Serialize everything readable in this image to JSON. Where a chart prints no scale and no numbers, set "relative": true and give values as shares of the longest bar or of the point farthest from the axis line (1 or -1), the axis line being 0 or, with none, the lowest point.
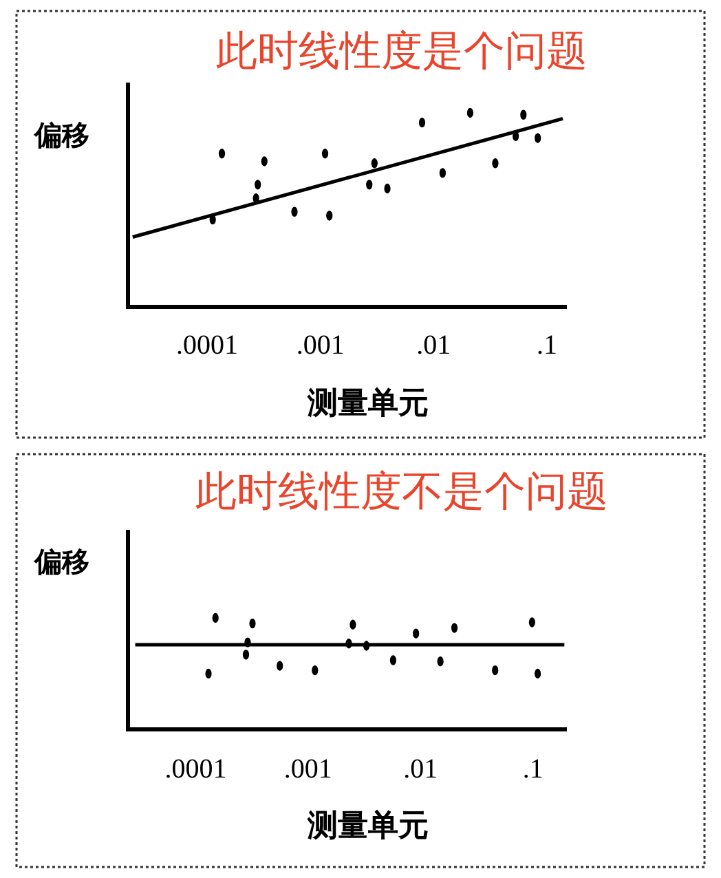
{
  "chart_data": [
    {
      "type": "scatter",
      "title": "此时线性度是个问题",
      "ylabel": "偏移",
      "xlabel": "测量单元",
      "relative": true,
      "log": "x",
      "xlim": [
        2e-05,
        0.15
      ],
      "xticks": [
        {
          "value": 0.0001,
          "label": ".0001"
        },
        {
          "value": 0.001,
          "label": ".001"
        },
        {
          "value": 0.01,
          "label": ".01"
        },
        {
          "value": 0.1,
          "label": ".1"
        }
      ],
      "series": [
        {
          "type": "scatter",
          "marker": "circle",
          "color": "#000000",
          "x": [
            0.000135,
            0.000112,
            0.00028,
            0.00027,
            0.00032,
            0.00059,
            0.0011,
            0.0012,
            0.0027,
            0.003,
            0.0039,
            0.0079,
            0.012,
            0.021,
            0.035,
            0.053,
            0.062,
            0.083
          ],
          "values": [
            0.79,
            0.45,
            0.63,
            0.56,
            0.75,
            0.49,
            0.79,
            0.47,
            0.63,
            0.74,
            0.61,
            0.95,
            0.69,
            1.0,
            0.74,
            0.88,
            0.99,
            0.87
          ]
        },
        {
          "type": "line",
          "marker": "none",
          "color": "#000000",
          "x": [
            2.2e-05,
            0.138
          ],
          "values": [
            0.36,
            0.97
          ]
        }
      ]
    },
    {
      "type": "scatter",
      "title": "此时线性度不是个问题",
      "ylabel": "偏移",
      "xlabel": "测量单元",
      "relative": true,
      "log": "x",
      "xlim": [
        2.5e-05,
        0.2
      ],
      "xticks": [
        {
          "value": 0.0001,
          "label": ".0001"
        },
        {
          "value": 0.001,
          "label": ".001"
        },
        {
          "value": 0.01,
          "label": ".01"
        },
        {
          "value": 0.1,
          "label": ".1"
        }
      ],
      "series": [
        {
          "type": "scatter",
          "marker": "circle",
          "color": "#000000",
          "x": [
            0.00015,
            0.00013,
            0.00032,
            0.00029,
            0.00028,
            0.00056,
            0.00115,
            0.0025,
            0.0023,
            0.0033,
            0.0057,
            0.0091,
            0.015,
            0.02,
            0.046,
            0.098,
            0.11
          ],
          "values": [
            1.0,
            0.5,
            0.95,
            0.78,
            0.67,
            0.57,
            0.53,
            0.94,
            0.77,
            0.75,
            0.62,
            0.86,
            0.61,
            0.91,
            0.53,
            0.96,
            0.5
          ]
        },
        {
          "type": "line",
          "marker": "none",
          "color": "#000000",
          "x": [
            2.9e-05,
            0.19
          ],
          "values": [
            0.76,
            0.76
          ]
        }
      ]
    }
  ]
}
